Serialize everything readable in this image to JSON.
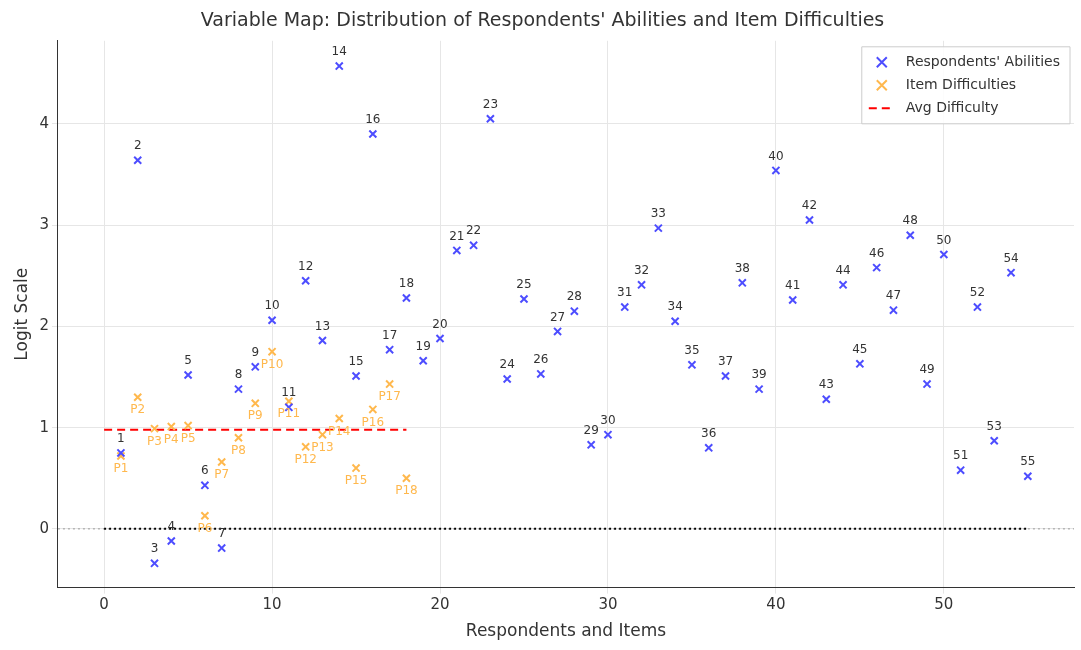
{
  "chart_data": {
    "type": "scatter",
    "title": "Variable Map: Distribution of Respondents' Abilities and Item Difficulties",
    "xlabel": "Respondents and Items",
    "ylabel": "Logit Scale",
    "xlim": [
      -2.75,
      57.75
    ],
    "xticks": [
      0,
      10,
      20,
      30,
      40,
      50
    ],
    "ylim": [
      -0.58,
      4.82
    ],
    "yticks": [
      0,
      1,
      2,
      3,
      4
    ],
    "grid": true,
    "legend": "top right",
    "marker": "cross",
    "ref_lines": [
      {
        "axis": "y",
        "value": 0,
        "color": "#999999",
        "line_style": "dotted"
      }
    ],
    "series": [
      {
        "name": "Respondents' Abilities",
        "color": "#4d4dff",
        "x": [
          1,
          2,
          3,
          4,
          5,
          6,
          7,
          8,
          9,
          10,
          11,
          12,
          13,
          14,
          15,
          16,
          17,
          18,
          19,
          20,
          21,
          22,
          23,
          24,
          25,
          26,
          27,
          28,
          29,
          30,
          31,
          32,
          33,
          34,
          35,
          36,
          37,
          38,
          39,
          40,
          41,
          42,
          43,
          44,
          45,
          46,
          47,
          48,
          49,
          50,
          51,
          52,
          53,
          54,
          55
        ],
        "values": [
          0.75,
          3.64,
          -0.34,
          -0.12,
          1.52,
          0.43,
          -0.19,
          1.38,
          1.6,
          2.06,
          1.2,
          2.45,
          1.86,
          4.57,
          1.51,
          3.9,
          1.77,
          2.28,
          1.66,
          1.88,
          2.75,
          2.8,
          4.05,
          1.48,
          2.27,
          1.53,
          1.95,
          2.15,
          0.83,
          0.93,
          2.19,
          2.41,
          2.97,
          2.05,
          1.62,
          0.8,
          1.51,
          2.43,
          1.38,
          3.54,
          2.26,
          3.05,
          1.28,
          2.41,
          1.63,
          2.58,
          2.16,
          2.9,
          1.43,
          2.71,
          0.58,
          2.19,
          0.87,
          2.53,
          0.52
        ]
      },
      {
        "name": "Item Difficulties",
        "color": "#ffb84d",
        "x": [
          1,
          2,
          3,
          4,
          5,
          6,
          7,
          8,
          9,
          10,
          11,
          12,
          13,
          14,
          15,
          16,
          17,
          18
        ],
        "values": [
          0.72,
          1.3,
          0.99,
          1.01,
          1.02,
          0.13,
          0.66,
          0.9,
          1.24,
          1.75,
          1.26,
          0.81,
          0.93,
          1.09,
          0.6,
          1.18,
          1.43,
          0.5
        ]
      },
      {
        "name": "Avg Difficulty",
        "type": "line",
        "color": "#ff0000",
        "line_style": "dashed",
        "marker": "none",
        "x": [
          0,
          18
        ],
        "values": [
          0.98,
          0.98
        ]
      },
      {
        "type": "line",
        "color": "#000000",
        "line_style": "dotted",
        "marker": "none",
        "x": [
          0,
          55
        ],
        "values": [
          0,
          0
        ]
      }
    ],
    "annotations": [
      {
        "text": "1",
        "x": 1,
        "y": 0.75
      },
      {
        "text": "2",
        "x": 2,
        "y": 3.64
      },
      {
        "text": "3",
        "x": 3,
        "y": -0.34
      },
      {
        "text": "4",
        "x": 4,
        "y": -0.12
      },
      {
        "text": "5",
        "x": 5,
        "y": 1.52
      },
      {
        "text": "6",
        "x": 6,
        "y": 0.43
      },
      {
        "text": "7",
        "x": 7,
        "y": -0.19
      },
      {
        "text": "8",
        "x": 8,
        "y": 1.38
      },
      {
        "text": "9",
        "x": 9,
        "y": 1.6
      },
      {
        "text": "10",
        "x": 10,
        "y": 2.06
      },
      {
        "text": "11",
        "x": 11,
        "y": 1.2
      },
      {
        "text": "12",
        "x": 12,
        "y": 2.45
      },
      {
        "text": "13",
        "x": 13,
        "y": 1.86
      },
      {
        "text": "14",
        "x": 14,
        "y": 4.57
      },
      {
        "text": "15",
        "x": 15,
        "y": 1.51
      },
      {
        "text": "16",
        "x": 16,
        "y": 3.9
      },
      {
        "text": "17",
        "x": 17,
        "y": 1.77
      },
      {
        "text": "18",
        "x": 18,
        "y": 2.28
      },
      {
        "text": "19",
        "x": 19,
        "y": 1.66
      },
      {
        "text": "20",
        "x": 20,
        "y": 1.88
      },
      {
        "text": "21",
        "x": 21,
        "y": 2.75
      },
      {
        "text": "22",
        "x": 22,
        "y": 2.8
      },
      {
        "text": "23",
        "x": 23,
        "y": 4.05
      },
      {
        "text": "24",
        "x": 24,
        "y": 1.48
      },
      {
        "text": "25",
        "x": 25,
        "y": 2.27
      },
      {
        "text": "26",
        "x": 26,
        "y": 1.53
      },
      {
        "text": "27",
        "x": 27,
        "y": 1.95
      },
      {
        "text": "28",
        "x": 28,
        "y": 2.15
      },
      {
        "text": "29",
        "x": 29,
        "y": 0.83
      },
      {
        "text": "30",
        "x": 30,
        "y": 0.93
      },
      {
        "text": "31",
        "x": 31,
        "y": 2.19
      },
      {
        "text": "32",
        "x": 32,
        "y": 2.41
      },
      {
        "text": "33",
        "x": 33,
        "y": 2.97
      },
      {
        "text": "34",
        "x": 34,
        "y": 2.05
      },
      {
        "text": "35",
        "x": 35,
        "y": 1.62
      },
      {
        "text": "36",
        "x": 36,
        "y": 0.8
      },
      {
        "text": "37",
        "x": 37,
        "y": 1.51
      },
      {
        "text": "38",
        "x": 38,
        "y": 2.43
      },
      {
        "text": "39",
        "x": 39,
        "y": 1.38
      },
      {
        "text": "40",
        "x": 40,
        "y": 3.54
      },
      {
        "text": "41",
        "x": 41,
        "y": 2.26
      },
      {
        "text": "42",
        "x": 42,
        "y": 3.05
      },
      {
        "text": "43",
        "x": 43,
        "y": 1.28
      },
      {
        "text": "44",
        "x": 44,
        "y": 2.41
      },
      {
        "text": "45",
        "x": 45,
        "y": 1.63
      },
      {
        "text": "46",
        "x": 46,
        "y": 2.58
      },
      {
        "text": "47",
        "x": 47,
        "y": 2.16
      },
      {
        "text": "48",
        "x": 48,
        "y": 2.9
      },
      {
        "text": "49",
        "x": 49,
        "y": 1.43
      },
      {
        "text": "50",
        "x": 50,
        "y": 2.71
      },
      {
        "text": "51",
        "x": 51,
        "y": 0.58
      },
      {
        "text": "52",
        "x": 52,
        "y": 2.19
      },
      {
        "text": "53",
        "x": 53,
        "y": 0.87
      },
      {
        "text": "54",
        "x": 54,
        "y": 2.53
      },
      {
        "text": "55",
        "x": 55,
        "y": 0.52
      },
      {
        "text": "P1",
        "x": 1,
        "y": 0.72
      },
      {
        "text": "P2",
        "x": 2,
        "y": 1.3
      },
      {
        "text": "P3",
        "x": 3,
        "y": 0.99
      },
      {
        "text": "P4",
        "x": 4,
        "y": 1.01
      },
      {
        "text": "P5",
        "x": 5,
        "y": 1.02
      },
      {
        "text": "P6",
        "x": 6,
        "y": 0.13
      },
      {
        "text": "P7",
        "x": 7,
        "y": 0.66
      },
      {
        "text": "P8",
        "x": 8,
        "y": 0.9
      },
      {
        "text": "P9",
        "x": 9,
        "y": 1.24
      },
      {
        "text": "P10",
        "x": 10,
        "y": 1.75
      },
      {
        "text": "P11",
        "x": 11,
        "y": 1.26
      },
      {
        "text": "P12",
        "x": 12,
        "y": 0.81
      },
      {
        "text": "P13",
        "x": 13,
        "y": 0.93
      },
      {
        "text": "P14",
        "x": 14,
        "y": 1.09
      },
      {
        "text": "P15",
        "x": 15,
        "y": 0.6
      },
      {
        "text": "P16",
        "x": 16,
        "y": 1.18
      },
      {
        "text": "P17",
        "x": 17,
        "y": 1.43
      },
      {
        "text": "P18",
        "x": 18,
        "y": 0.5
      }
    ]
  }
}
